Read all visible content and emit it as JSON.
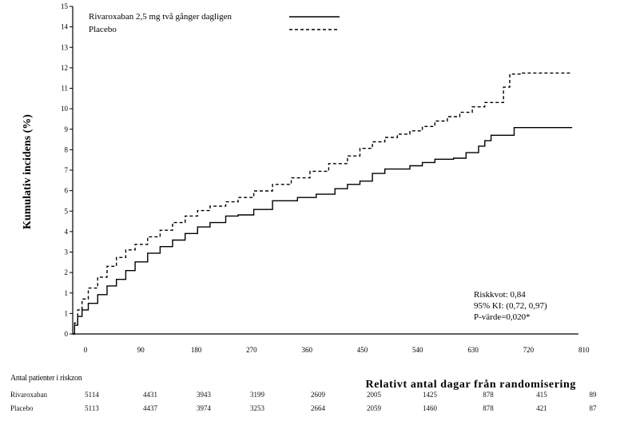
{
  "chart_data": {
    "type": "line",
    "ylabel": "Kumulativ incidens (%)",
    "xlabel": "Relativt antal dagar från randomisering",
    "x_ticks": [
      "0",
      "90",
      "180",
      "270",
      "360",
      "450",
      "540",
      "630",
      "720",
      "810"
    ],
    "y_ticks": [
      "0",
      "1",
      "1",
      "2",
      "3",
      "4",
      "5",
      "6",
      "7",
      "8",
      "9",
      "10",
      "11",
      "12",
      "13",
      "14",
      "15"
    ],
    "xlim": [
      0,
      810
    ],
    "ylim": [
      0,
      15
    ],
    "series": [
      {
        "name": "Rivaroxaban 2,5 mg två gånger dagligen",
        "style": "solid",
        "points": [
          [
            0,
            0
          ],
          [
            3,
            0.4
          ],
          [
            8,
            0.8
          ],
          [
            15,
            1.1
          ],
          [
            25,
            1.4
          ],
          [
            40,
            1.8
          ],
          [
            55,
            2.2
          ],
          [
            70,
            2.5
          ],
          [
            85,
            2.9
          ],
          [
            100,
            3.3
          ],
          [
            120,
            3.7
          ],
          [
            140,
            4.0
          ],
          [
            160,
            4.3
          ],
          [
            180,
            4.6
          ],
          [
            200,
            4.9
          ],
          [
            220,
            5.1
          ],
          [
            245,
            5.4
          ],
          [
            265,
            5.45
          ],
          [
            290,
            5.7
          ],
          [
            320,
            6.1
          ],
          [
            360,
            6.25
          ],
          [
            390,
            6.4
          ],
          [
            420,
            6.65
          ],
          [
            440,
            6.85
          ],
          [
            460,
            7.0
          ],
          [
            480,
            7.35
          ],
          [
            500,
            7.55
          ],
          [
            540,
            7.7
          ],
          [
            560,
            7.85
          ],
          [
            580,
            8.0
          ],
          [
            610,
            8.05
          ],
          [
            630,
            8.3
          ],
          [
            650,
            8.6
          ],
          [
            660,
            8.85
          ],
          [
            670,
            9.1
          ],
          [
            680,
            9.1
          ],
          [
            700,
            9.1
          ],
          [
            707,
            9.45
          ],
          [
            800,
            9.45
          ]
        ]
      },
      {
        "name": "Placebo",
        "style": "dashed",
        "points": [
          [
            0,
            0
          ],
          [
            3,
            0.5
          ],
          [
            8,
            1.1
          ],
          [
            15,
            1.6
          ],
          [
            25,
            2.1
          ],
          [
            40,
            2.6
          ],
          [
            55,
            3.1
          ],
          [
            70,
            3.5
          ],
          [
            85,
            3.85
          ],
          [
            100,
            4.1
          ],
          [
            120,
            4.45
          ],
          [
            140,
            4.75
          ],
          [
            160,
            5.1
          ],
          [
            180,
            5.4
          ],
          [
            200,
            5.65
          ],
          [
            220,
            5.85
          ],
          [
            245,
            6.05
          ],
          [
            265,
            6.25
          ],
          [
            290,
            6.55
          ],
          [
            320,
            6.85
          ],
          [
            350,
            7.15
          ],
          [
            380,
            7.45
          ],
          [
            410,
            7.8
          ],
          [
            440,
            8.15
          ],
          [
            460,
            8.5
          ],
          [
            480,
            8.8
          ],
          [
            500,
            9.0
          ],
          [
            520,
            9.15
          ],
          [
            540,
            9.3
          ],
          [
            560,
            9.5
          ],
          [
            580,
            9.75
          ],
          [
            600,
            9.95
          ],
          [
            620,
            10.15
          ],
          [
            640,
            10.4
          ],
          [
            660,
            10.6
          ],
          [
            680,
            10.6
          ],
          [
            690,
            11.3
          ],
          [
            700,
            11.9
          ],
          [
            720,
            11.95
          ],
          [
            800,
            11.95
          ]
        ]
      }
    ],
    "annotation": [
      "Riskkvot: 0,84",
      "95% KI: (0,72, 0,97)",
      "P-värde=0,020*"
    ]
  },
  "risk_table": {
    "title": "Antal patienter i riskzon",
    "rows": [
      {
        "label": "Rivaroxaban",
        "values": [
          "5114",
          "4431",
          "3943",
          "3199",
          "2609",
          "2005",
          "1425",
          "878",
          "415",
          "89"
        ]
      },
      {
        "label": "Placebo",
        "values": [
          "5113",
          "4437",
          "3974",
          "3253",
          "2664",
          "2059",
          "1460",
          "878",
          "421",
          "87"
        ]
      }
    ]
  }
}
